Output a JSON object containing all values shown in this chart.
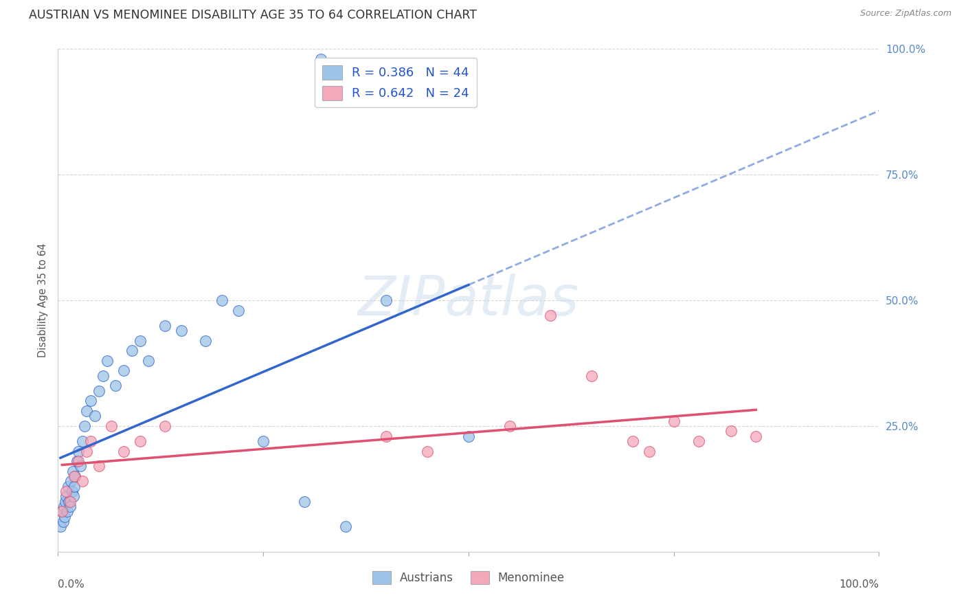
{
  "title": "AUSTRIAN VS MENOMINEE DISABILITY AGE 35 TO 64 CORRELATION CHART",
  "source": "Source: ZipAtlas.com",
  "ylabel": "Disability Age 35 to 64",
  "xlim": [
    0.0,
    100.0
  ],
  "ylim": [
    0.0,
    100.0
  ],
  "legend_label1": "Austrians",
  "legend_label2": "Menominee",
  "R_austrians": 0.386,
  "N_austrians": 44,
  "R_menominee": 0.642,
  "N_menominee": 24,
  "color_austrians": "#9DC4E8",
  "color_menominee": "#F4A8BA",
  "line_color_austrians": "#3366CC",
  "line_color_menominee": "#E05070",
  "background_color": "#FFFFFF",
  "grid_color": "#CCCCCC",
  "tick_color_right": "#5588CC",
  "austrians_x": [
    0.3,
    0.5,
    0.6,
    0.7,
    0.8,
    0.9,
    1.0,
    1.1,
    1.2,
    1.3,
    1.5,
    1.6,
    1.7,
    1.8,
    1.9,
    2.0,
    2.1,
    2.3,
    2.5,
    2.7,
    3.0,
    3.2,
    3.5,
    4.0,
    4.5,
    5.0,
    5.5,
    6.0,
    7.0,
    8.0,
    9.0,
    10.0,
    11.0,
    13.0,
    15.0,
    18.0,
    20.0,
    22.0,
    25.0,
    30.0,
    35.0,
    40.0,
    50.0,
    32.0
  ],
  "austrians_y": [
    5.0,
    8.0,
    6.0,
    9.0,
    7.0,
    10.0,
    11.0,
    8.0,
    13.0,
    10.0,
    9.0,
    14.0,
    12.0,
    16.0,
    11.0,
    13.0,
    15.0,
    18.0,
    20.0,
    17.0,
    22.0,
    25.0,
    28.0,
    30.0,
    27.0,
    32.0,
    35.0,
    38.0,
    33.0,
    36.0,
    40.0,
    42.0,
    38.0,
    45.0,
    44.0,
    42.0,
    50.0,
    48.0,
    22.0,
    10.0,
    5.0,
    50.0,
    23.0,
    98.0
  ],
  "menominee_x": [
    0.5,
    1.0,
    1.5,
    2.0,
    2.5,
    3.0,
    3.5,
    4.0,
    5.0,
    6.5,
    8.0,
    10.0,
    13.0,
    40.0,
    45.0,
    55.0,
    60.0,
    65.0,
    70.0,
    72.0,
    75.0,
    78.0,
    82.0,
    85.0
  ],
  "menominee_y": [
    8.0,
    12.0,
    10.0,
    15.0,
    18.0,
    14.0,
    20.0,
    22.0,
    17.0,
    25.0,
    20.0,
    22.0,
    25.0,
    23.0,
    20.0,
    25.0,
    47.0,
    35.0,
    22.0,
    20.0,
    26.0,
    22.0,
    24.0,
    23.0
  ]
}
